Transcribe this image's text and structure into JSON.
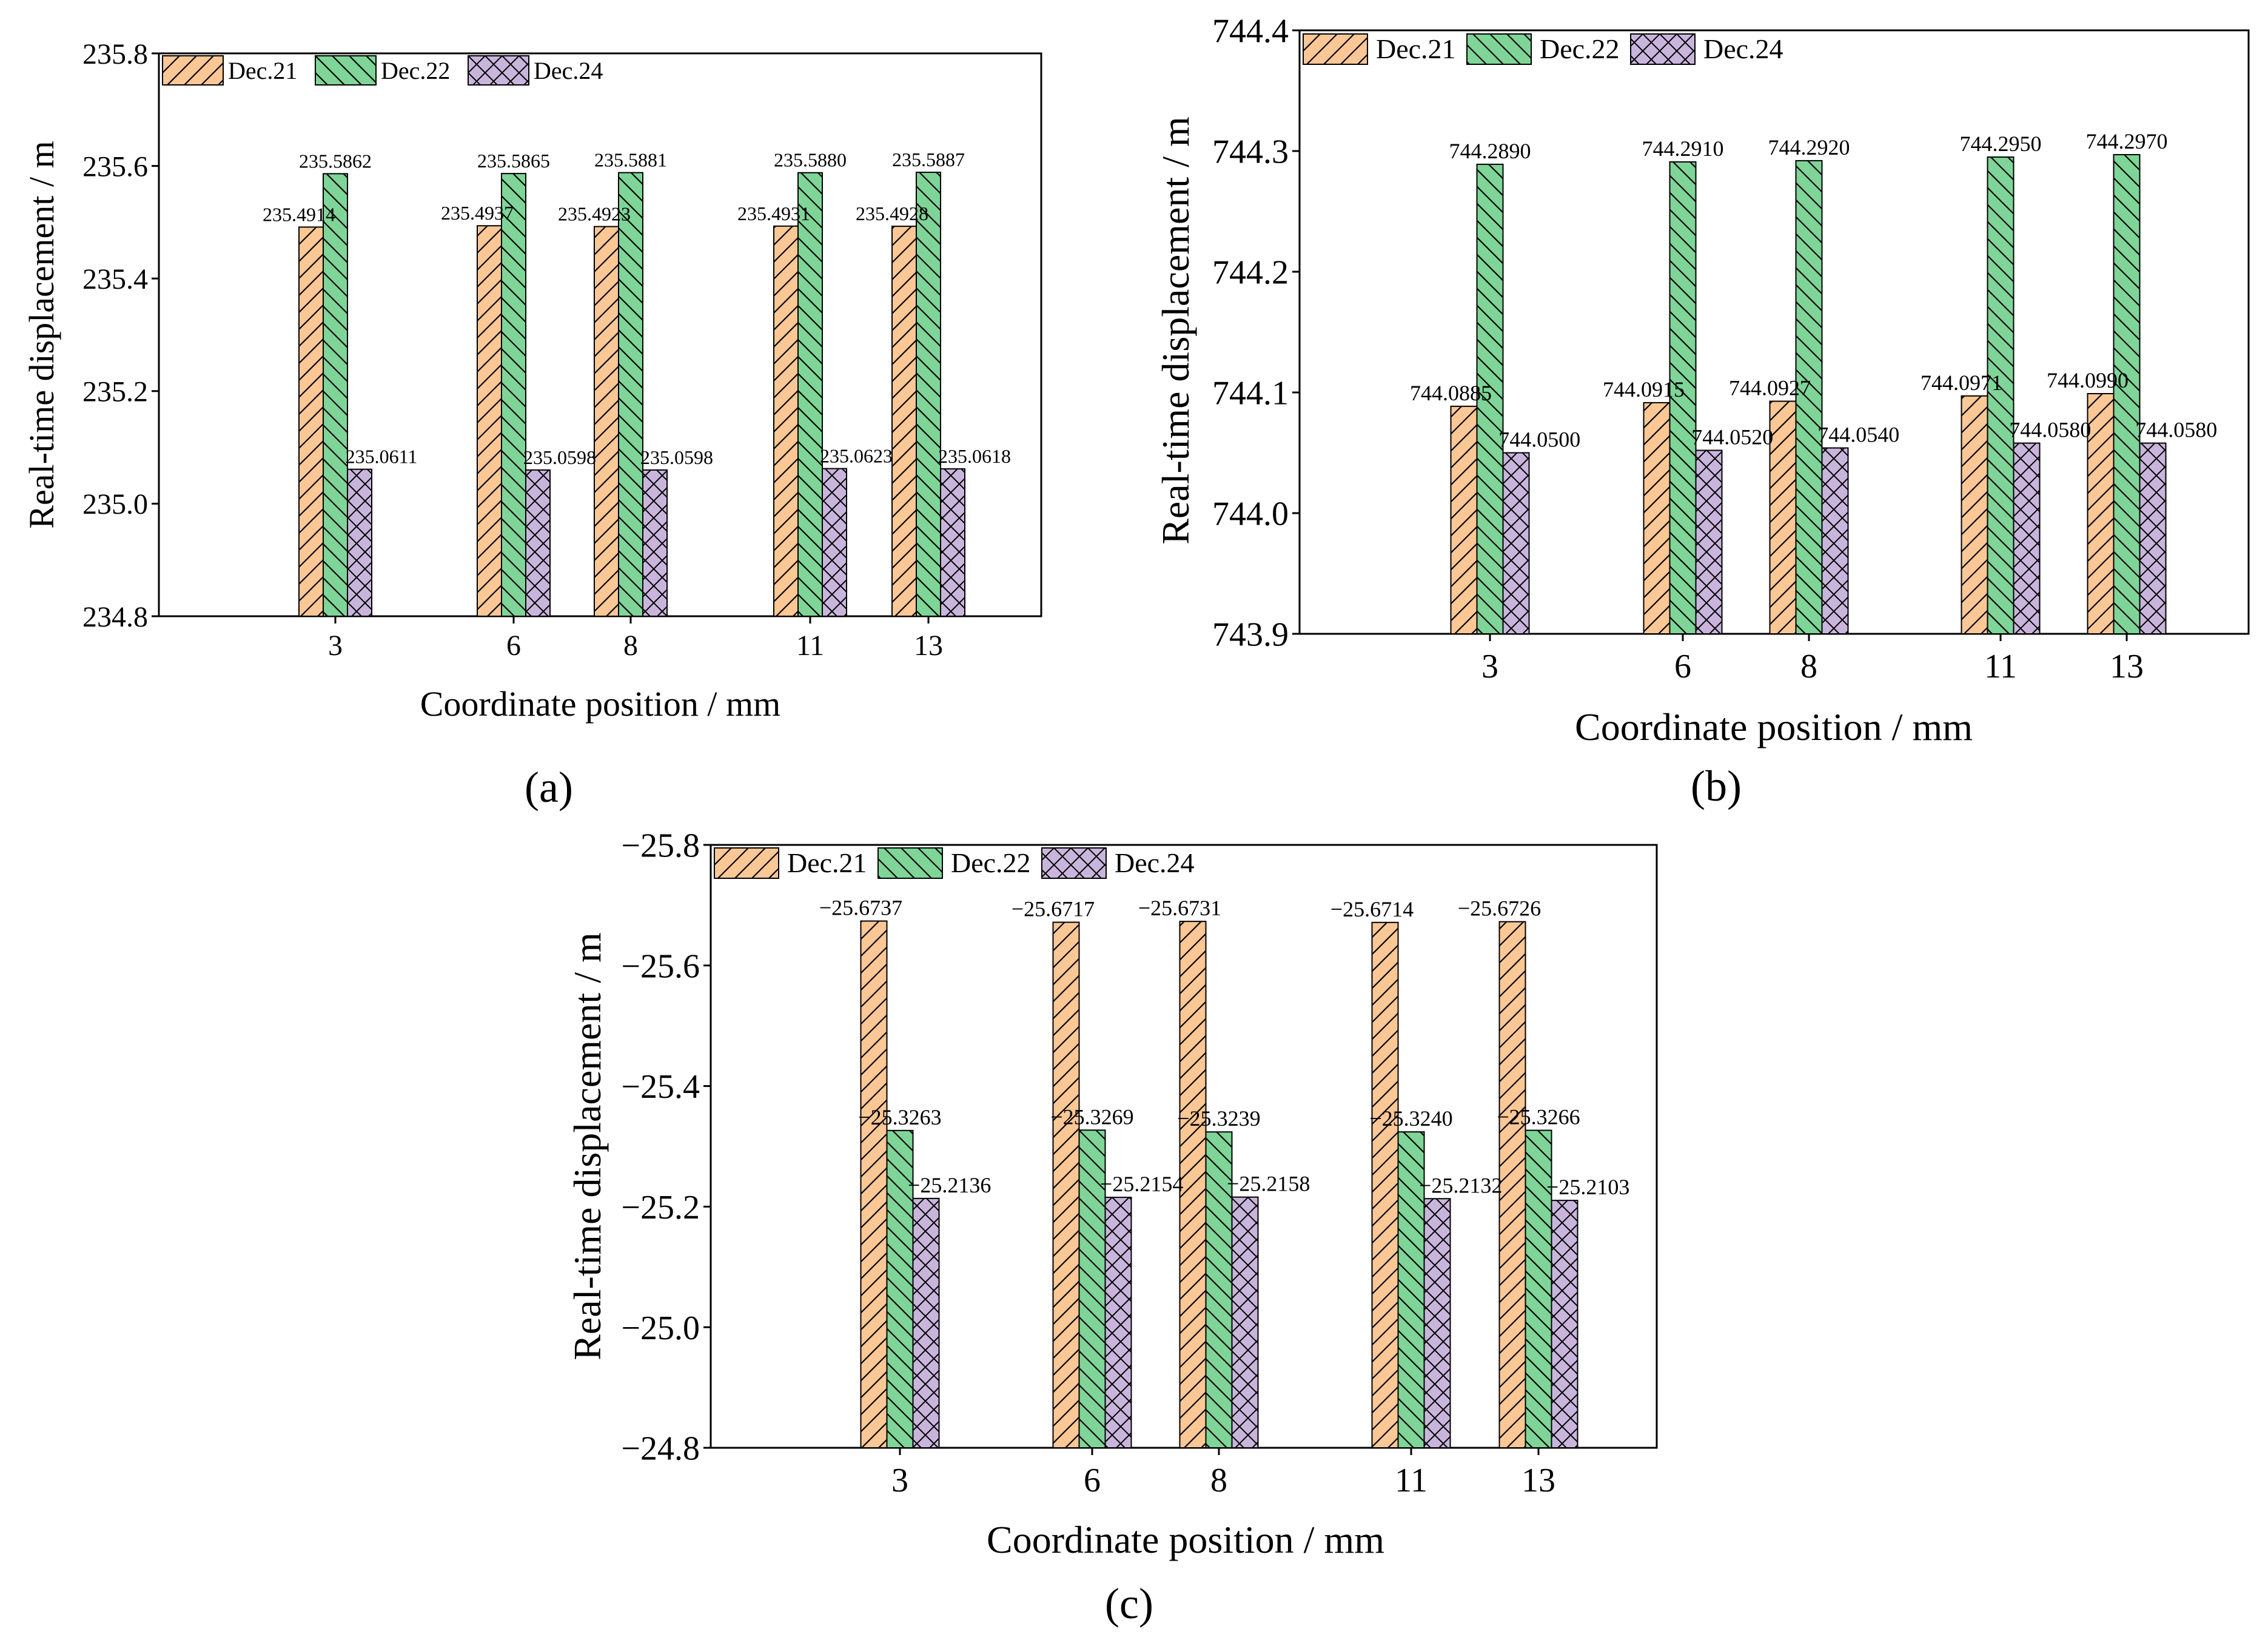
{
  "figure": {
    "panel_captions": [
      "(a)",
      "(b)",
      "(c)"
    ]
  },
  "legend_colors": {
    "Dec.21": "#fbc795",
    "Dec.22": "#7ed597",
    "Dec.24": "#c9b5dc"
  },
  "chart_data": [
    {
      "type": "bar",
      "caption": "(a)",
      "xlabel": "Coordinate position / mm",
      "ylabel": "Real-time displacement / m",
      "ylim": [
        234.8,
        235.8
      ],
      "yticks": [
        "234.8",
        "235.0",
        "235.2",
        "235.4",
        "235.6",
        "235.8"
      ],
      "categories": [
        "3",
        "6",
        "8",
        "11",
        "13"
      ],
      "series": [
        {
          "name": "Dec.21",
          "values": [
            235.4914,
            235.4937,
            235.4923,
            235.4931,
            235.4928
          ],
          "labels": [
            "235.4914",
            "235.4937",
            "235.4923",
            "235.4931",
            "235.4928"
          ]
        },
        {
          "name": "Dec.22",
          "values": [
            235.5862,
            235.5865,
            235.5881,
            235.588,
            235.5887
          ],
          "labels": [
            "235.5862",
            "235.5865",
            "235.5881",
            "235.5880",
            "235.5887"
          ]
        },
        {
          "name": "Dec.24",
          "values": [
            235.0611,
            235.0598,
            235.0598,
            235.0623,
            235.0618
          ],
          "labels": [
            "235.0611",
            "235.0598",
            "235.0598",
            "235.0623",
            "235.0618"
          ]
        }
      ]
    },
    {
      "type": "bar",
      "caption": "(b)",
      "xlabel": "Coordinate position / mm",
      "ylabel": "Real-time displacement / m",
      "ylim": [
        743.9,
        744.4
      ],
      "yticks": [
        "743.9",
        "744.0",
        "744.1",
        "744.2",
        "744.3",
        "744.4"
      ],
      "categories": [
        "3",
        "6",
        "8",
        "11",
        "13"
      ],
      "series": [
        {
          "name": "Dec.21",
          "values": [
            744.0885,
            744.0915,
            744.0927,
            744.0971,
            744.099
          ],
          "labels": [
            "744.0885",
            "744.0915",
            "744.0927",
            "744.0971",
            "744.0990"
          ]
        },
        {
          "name": "Dec.22",
          "values": [
            744.289,
            744.291,
            744.292,
            744.295,
            744.297
          ],
          "labels": [
            "744.2890",
            "744.2910",
            "744.2920",
            "744.2950",
            "744.2970"
          ]
        },
        {
          "name": "Dec.24",
          "values": [
            744.05,
            744.052,
            744.054,
            744.058,
            744.058
          ],
          "labels": [
            "744.0500",
            "744.0520",
            "744.0540",
            "744.0580",
            "744.0580"
          ]
        }
      ]
    },
    {
      "type": "bar",
      "caption": "(c)",
      "xlabel": "Coordinate position / mm",
      "ylabel": "Real-time displacement / m",
      "ylim": [
        -24.8,
        -25.8
      ],
      "yticks": [
        "−24.8",
        "−25.0",
        "−25.2",
        "−25.4",
        "−25.6",
        "−25.8"
      ],
      "categories": [
        "3",
        "6",
        "8",
        "11",
        "13"
      ],
      "series": [
        {
          "name": "Dec.21",
          "values": [
            -25.6737,
            -25.6717,
            -25.6731,
            -25.6714,
            -25.6726
          ],
          "labels": [
            "−25.6737",
            "−25.6717",
            "−25.6731",
            "−25.6714",
            "−25.6726"
          ]
        },
        {
          "name": "Dec.22",
          "values": [
            -25.3263,
            -25.3269,
            -25.3239,
            -25.324,
            -25.3266
          ],
          "labels": [
            "−25.3263",
            "−25.3269",
            "−25.3239",
            "−25.3240",
            "−25.3266"
          ]
        },
        {
          "name": "Dec.24",
          "values": [
            -25.2136,
            -25.2154,
            -25.2158,
            -25.2132,
            -25.2103
          ],
          "labels": [
            "−25.2136",
            "−25.2154",
            "−25.2158",
            "−25.2132",
            "−25.2103"
          ]
        }
      ]
    }
  ]
}
